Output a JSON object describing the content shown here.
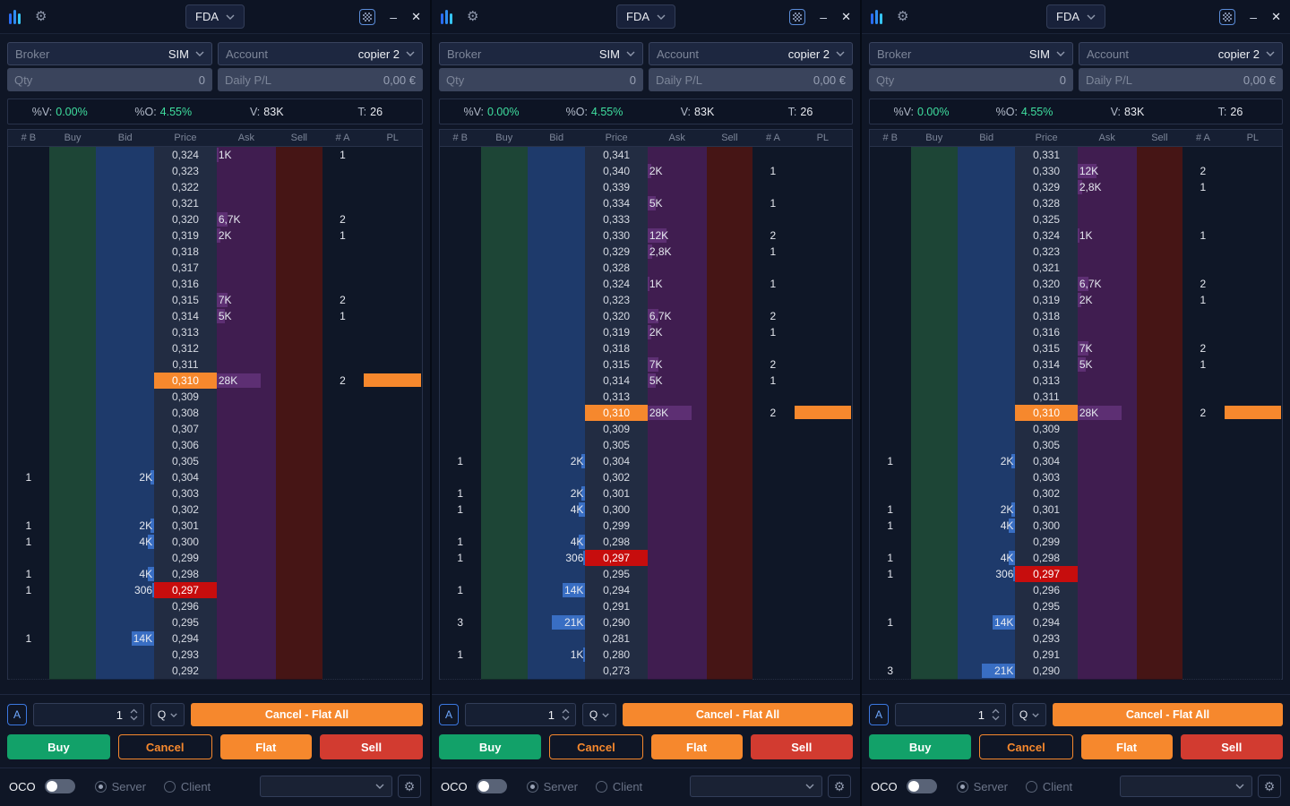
{
  "titlebar": {
    "symbol": "FDA",
    "gear_glyph": "⚙",
    "minimize_glyph": "–",
    "close_glyph": "✕"
  },
  "fields": {
    "broker_label": "Broker",
    "broker_value": "SIM",
    "account_label": "Account",
    "account_value": "copier 2",
    "qty_label": "Qty",
    "qty_value": "0",
    "pl_label": "Daily P/L",
    "pl_value": "0,00 €"
  },
  "stats": {
    "items": [
      {
        "label": "%V:",
        "value": "0.00%",
        "green": true
      },
      {
        "label": "%O:",
        "value": "4.55%",
        "green": true
      },
      {
        "label": "V:",
        "value": "83K",
        "green": false
      },
      {
        "label": "T:",
        "value": "26",
        "green": false
      }
    ]
  },
  "ladder": {
    "headers": [
      "# B",
      "Buy",
      "Bid",
      "Price",
      "Ask",
      "Sell",
      "# A",
      "PL"
    ]
  },
  "controls": {
    "a_button": "A",
    "qty_value": "1",
    "q_button": "Q",
    "cancel_flat_all": "Cancel - Flat All",
    "buy": "Buy",
    "cancel": "Cancel",
    "flat": "Flat",
    "sell": "Sell",
    "oco": "OCO",
    "server": "Server",
    "client": "Client",
    "oco_gear_glyph": "⚙"
  },
  "colors": {
    "accent_orange": "#f6882d",
    "highlight_red": "#c70d0d",
    "buy_green": "#12a169",
    "sell_red": "#d23b30",
    "stat_green": "#3fdf9f",
    "bid_bar": "rgba(62,120,210,0.85)",
    "ask_bar": "rgba(155,88,190,0.32)"
  },
  "bar_scale_max": 28000,
  "panels": [
    {
      "rows": [
        {
          "p": "0,324",
          "ask": "1K",
          "askv": 1000,
          "na": "1"
        },
        {
          "p": "0,323"
        },
        {
          "p": "0,322"
        },
        {
          "p": "0,321"
        },
        {
          "p": "0,320",
          "ask": "6,7K",
          "askv": 6700,
          "na": "2"
        },
        {
          "p": "0,319",
          "ask": "2K",
          "askv": 2000,
          "na": "1"
        },
        {
          "p": "0,318"
        },
        {
          "p": "0,317"
        },
        {
          "p": "0,316"
        },
        {
          "p": "0,315",
          "ask": "7K",
          "askv": 7000,
          "na": "2"
        },
        {
          "p": "0,314",
          "ask": "5K",
          "askv": 5000,
          "na": "1"
        },
        {
          "p": "0,313"
        },
        {
          "p": "0,312"
        },
        {
          "p": "0,311"
        },
        {
          "p": "0,310",
          "ask": "28K",
          "askv": 28000,
          "na": "2",
          "hl": "orange",
          "pl": true
        },
        {
          "p": "0,309"
        },
        {
          "p": "0,308"
        },
        {
          "p": "0,307"
        },
        {
          "p": "0,306"
        },
        {
          "p": "0,305"
        },
        {
          "p": "0,304",
          "bid": "2K",
          "bidv": 2000,
          "nb": "1"
        },
        {
          "p": "0,303"
        },
        {
          "p": "0,302"
        },
        {
          "p": "0,301",
          "bid": "2K",
          "bidv": 2000,
          "nb": "1"
        },
        {
          "p": "0,300",
          "bid": "4K",
          "bidv": 4000,
          "nb": "1"
        },
        {
          "p": "0,299"
        },
        {
          "p": "0,298",
          "bid": "4K",
          "bidv": 4000,
          "nb": "1"
        },
        {
          "p": "0,297",
          "bid": "306",
          "bidv": 306,
          "nb": "1",
          "hl": "red"
        },
        {
          "p": "0,296"
        },
        {
          "p": "0,295"
        },
        {
          "p": "0,294",
          "bid": "14K",
          "bidv": 14000,
          "nb": "1"
        },
        {
          "p": "0,293"
        },
        {
          "p": "0,292"
        }
      ]
    },
    {
      "rows": [
        {
          "p": "0,341"
        },
        {
          "p": "0,340",
          "ask": "2K",
          "askv": 2000,
          "na": "1"
        },
        {
          "p": "0,339"
        },
        {
          "p": "0,334",
          "ask": "5K",
          "askv": 5000,
          "na": "1"
        },
        {
          "p": "0,333"
        },
        {
          "p": "0,330",
          "ask": "12K",
          "askv": 12000,
          "na": "2"
        },
        {
          "p": "0,329",
          "ask": "2,8K",
          "askv": 2800,
          "na": "1"
        },
        {
          "p": "0,328"
        },
        {
          "p": "0,324",
          "ask": "1K",
          "askv": 1000,
          "na": "1"
        },
        {
          "p": "0,323"
        },
        {
          "p": "0,320",
          "ask": "6,7K",
          "askv": 6700,
          "na": "2"
        },
        {
          "p": "0,319",
          "ask": "2K",
          "askv": 2000,
          "na": "1"
        },
        {
          "p": "0,318"
        },
        {
          "p": "0,315",
          "ask": "7K",
          "askv": 7000,
          "na": "2"
        },
        {
          "p": "0,314",
          "ask": "5K",
          "askv": 5000,
          "na": "1"
        },
        {
          "p": "0,313"
        },
        {
          "p": "0,310",
          "ask": "28K",
          "askv": 28000,
          "na": "2",
          "hl": "orange",
          "pl": true
        },
        {
          "p": "0,309"
        },
        {
          "p": "0,305"
        },
        {
          "p": "0,304",
          "bid": "2K",
          "bidv": 2000,
          "nb": "1"
        },
        {
          "p": "0,302"
        },
        {
          "p": "0,301",
          "bid": "2K",
          "bidv": 2000,
          "nb": "1"
        },
        {
          "p": "0,300",
          "bid": "4K",
          "bidv": 4000,
          "nb": "1"
        },
        {
          "p": "0,299"
        },
        {
          "p": "0,298",
          "bid": "4K",
          "bidv": 4000,
          "nb": "1"
        },
        {
          "p": "0,297",
          "bid": "306",
          "bidv": 306,
          "nb": "1",
          "hl": "red"
        },
        {
          "p": "0,295"
        },
        {
          "p": "0,294",
          "bid": "14K",
          "bidv": 14000,
          "nb": "1"
        },
        {
          "p": "0,291"
        },
        {
          "p": "0,290",
          "bid": "21K",
          "bidv": 21000,
          "nb": "3"
        },
        {
          "p": "0,281"
        },
        {
          "p": "0,280",
          "bid": "1K",
          "bidv": 1000,
          "nb": "1"
        },
        {
          "p": "0,273"
        }
      ]
    },
    {
      "rows": [
        {
          "p": "0,331"
        },
        {
          "p": "0,330",
          "ask": "12K",
          "askv": 12000,
          "na": "2"
        },
        {
          "p": "0,329",
          "ask": "2,8K",
          "askv": 2800,
          "na": "1"
        },
        {
          "p": "0,328"
        },
        {
          "p": "0,325"
        },
        {
          "p": "0,324",
          "ask": "1K",
          "askv": 1000,
          "na": "1"
        },
        {
          "p": "0,323"
        },
        {
          "p": "0,321"
        },
        {
          "p": "0,320",
          "ask": "6,7K",
          "askv": 6700,
          "na": "2"
        },
        {
          "p": "0,319",
          "ask": "2K",
          "askv": 2000,
          "na": "1"
        },
        {
          "p": "0,318"
        },
        {
          "p": "0,316"
        },
        {
          "p": "0,315",
          "ask": "7K",
          "askv": 7000,
          "na": "2"
        },
        {
          "p": "0,314",
          "ask": "5K",
          "askv": 5000,
          "na": "1"
        },
        {
          "p": "0,313"
        },
        {
          "p": "0,311"
        },
        {
          "p": "0,310",
          "ask": "28K",
          "askv": 28000,
          "na": "2",
          "hl": "orange",
          "pl": true
        },
        {
          "p": "0,309"
        },
        {
          "p": "0,305"
        },
        {
          "p": "0,304",
          "bid": "2K",
          "bidv": 2000,
          "nb": "1"
        },
        {
          "p": "0,303"
        },
        {
          "p": "0,302"
        },
        {
          "p": "0,301",
          "bid": "2K",
          "bidv": 2000,
          "nb": "1"
        },
        {
          "p": "0,300",
          "bid": "4K",
          "bidv": 4000,
          "nb": "1"
        },
        {
          "p": "0,299"
        },
        {
          "p": "0,298",
          "bid": "4K",
          "bidv": 4000,
          "nb": "1"
        },
        {
          "p": "0,297",
          "bid": "306",
          "bidv": 306,
          "nb": "1",
          "hl": "red"
        },
        {
          "p": "0,296"
        },
        {
          "p": "0,295"
        },
        {
          "p": "0,294",
          "bid": "14K",
          "bidv": 14000,
          "nb": "1"
        },
        {
          "p": "0,293"
        },
        {
          "p": "0,291"
        },
        {
          "p": "0,290",
          "bid": "21K",
          "bidv": 21000,
          "nb": "3"
        }
      ]
    }
  ]
}
